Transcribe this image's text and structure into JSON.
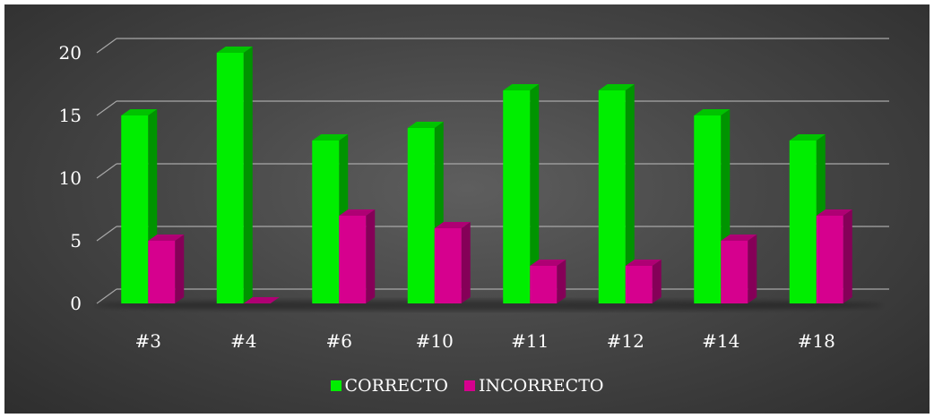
{
  "chart_data": {
    "type": "bar",
    "title": "",
    "xlabel": "",
    "ylabel": "",
    "categories": [
      "#3",
      "#4",
      "#6",
      "#10",
      "#11",
      "#12",
      "#14",
      "#18"
    ],
    "series": [
      {
        "name": "CORRECTO",
        "values": [
          15,
          20,
          13,
          14,
          17,
          17,
          15,
          13
        ],
        "color": "#00ee00"
      },
      {
        "name": "INCORRECTO",
        "values": [
          5,
          0,
          7,
          6,
          3,
          3,
          5,
          7
        ],
        "color": "#d6008e"
      }
    ],
    "ylim": [
      0,
      20
    ],
    "yticks": [
      0,
      5,
      10,
      15,
      20
    ],
    "grid": true,
    "legend": "bottom",
    "background": "#474747"
  }
}
